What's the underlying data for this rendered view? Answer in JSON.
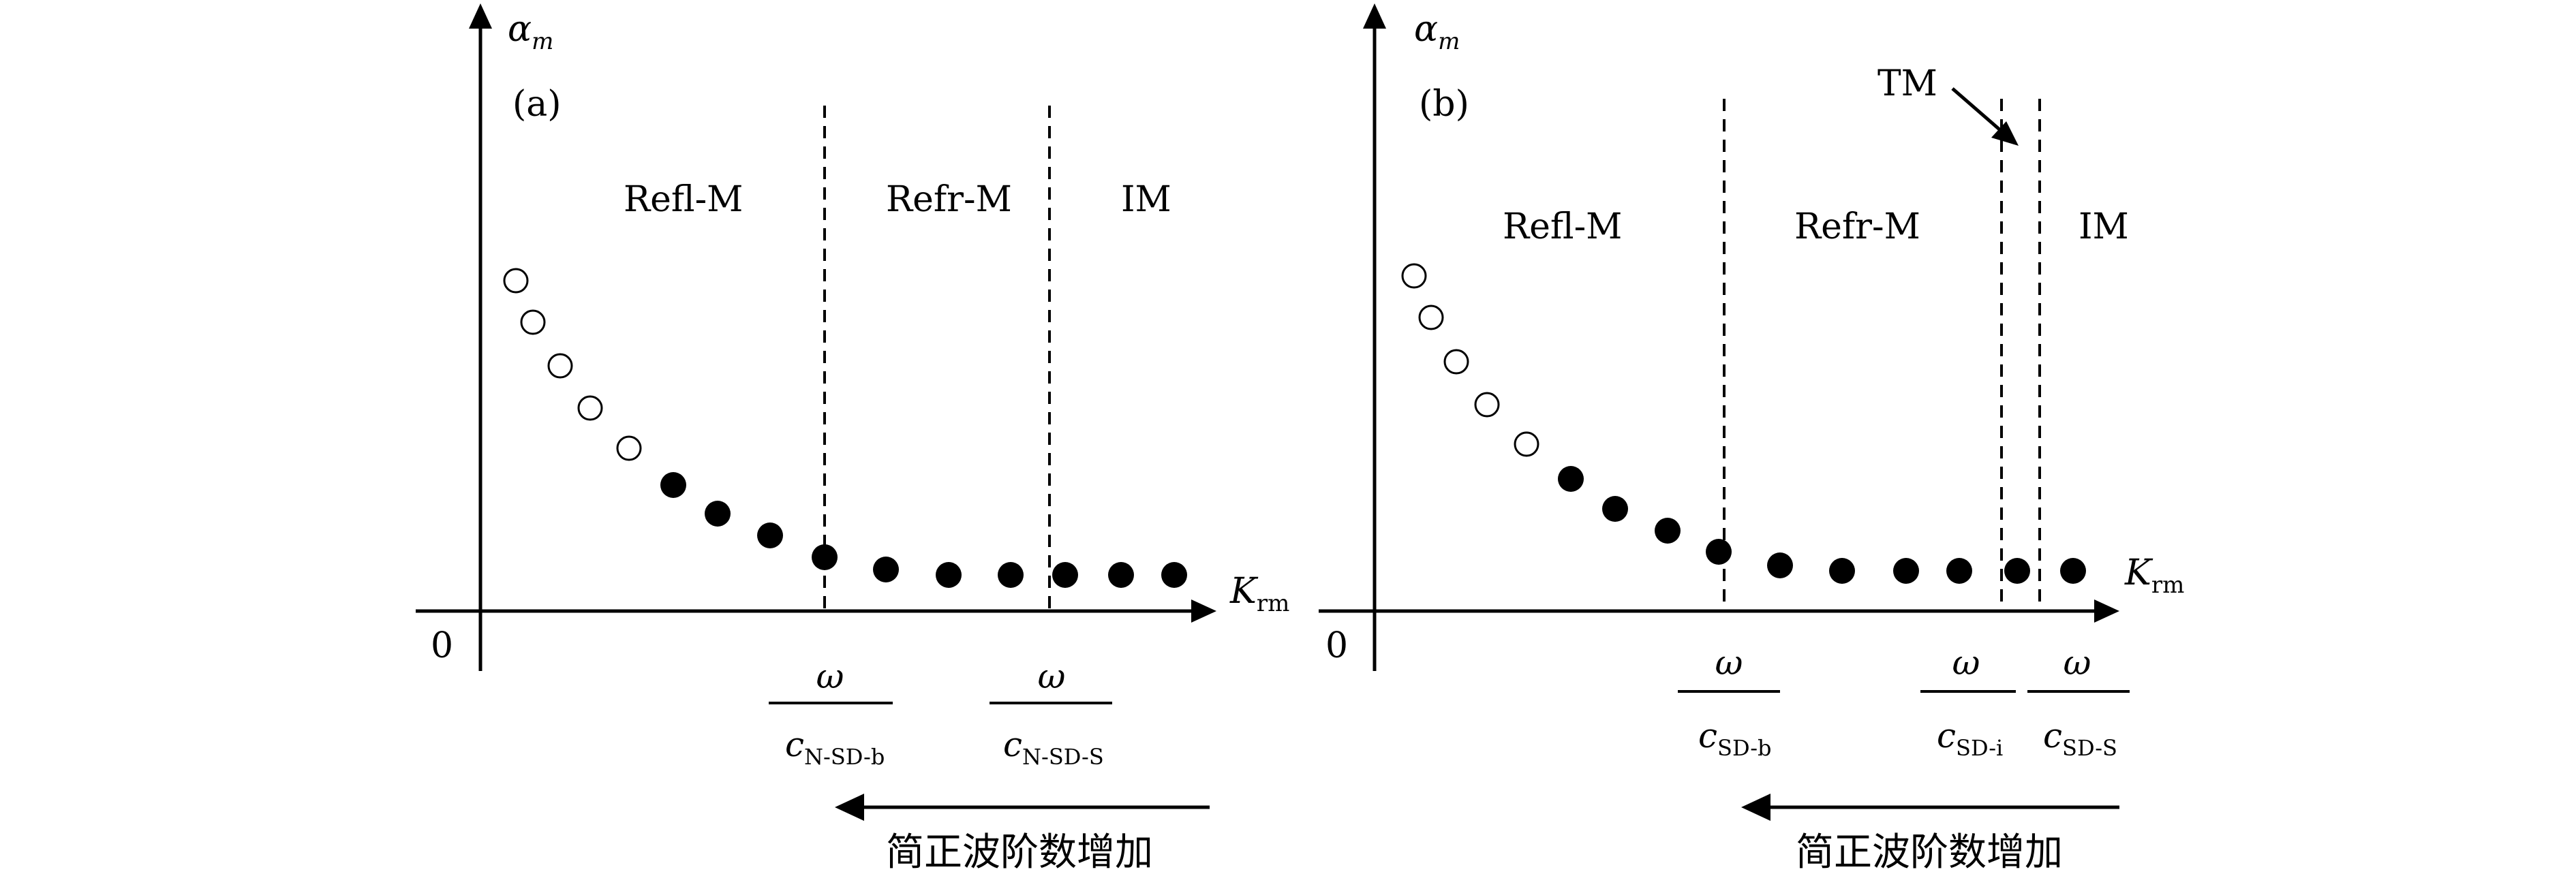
{
  "panels": [
    {
      "id": "a",
      "tag": "(a)",
      "y_axis_symbol": "α",
      "y_axis_sub": "m",
      "x_axis_symbol": "K",
      "x_axis_sub": "rm",
      "origin": "0",
      "regions": [
        "Refl-M",
        "Refr-M",
        "IM"
      ],
      "boundaries": [
        {
          "num": "ω",
          "den": "c",
          "den_sub": "N-SD-b"
        },
        {
          "num": "ω",
          "den": "c",
          "den_sub": "N-SD-S"
        }
      ],
      "modes_open": 5,
      "modes_filled": 10,
      "arrow_caption": "简正波阶数增加"
    },
    {
      "id": "b",
      "tag": "(b)",
      "y_axis_symbol": "α",
      "y_axis_sub": "m",
      "x_axis_symbol": "K",
      "x_axis_sub": "rm",
      "origin": "0",
      "regions": [
        "Refl-M",
        "Refr-M",
        "IM"
      ],
      "transition_label": "TM",
      "boundaries": [
        {
          "num": "ω",
          "den": "c",
          "den_sub": "SD-b"
        },
        {
          "num": "ω",
          "den": "c",
          "den_sub": "SD-i"
        },
        {
          "num": "ω",
          "den": "c",
          "den_sub": "SD-S"
        }
      ],
      "modes_open": 5,
      "modes_filled": 10,
      "arrow_caption": "简正波阶数增加"
    }
  ],
  "colors": {
    "ink": "#000000",
    "background": "#ffffff"
  }
}
